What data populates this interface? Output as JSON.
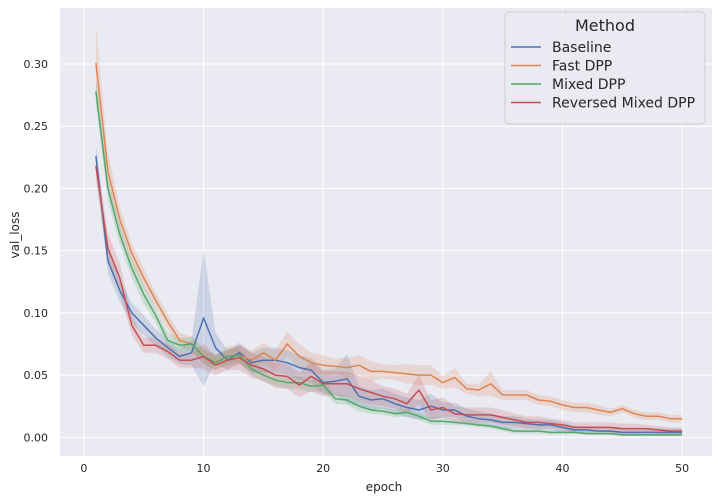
{
  "chart_data": {
    "type": "line",
    "xlabel": "epoch",
    "ylabel": "val_loss",
    "xlim": [
      -2,
      52.5
    ],
    "ylim": [
      -0.015,
      0.345
    ],
    "xticks": [
      0,
      10,
      20,
      30,
      40,
      50
    ],
    "xtick_labels": [
      "0",
      "10",
      "20",
      "30",
      "40",
      "50"
    ],
    "yticks": [
      0.0,
      0.05,
      0.1,
      0.15,
      0.2,
      0.25,
      0.3
    ],
    "ytick_labels": [
      "0.00",
      "0.05",
      "0.10",
      "0.15",
      "0.20",
      "0.25",
      "0.30"
    ],
    "grid": true,
    "legend": {
      "title": "Method",
      "placement": "top-right"
    },
    "x": [
      1,
      2,
      3,
      4,
      5,
      6,
      7,
      8,
      9,
      10,
      11,
      12,
      13,
      14,
      15,
      16,
      17,
      18,
      19,
      20,
      21,
      22,
      23,
      24,
      25,
      26,
      27,
      28,
      29,
      30,
      31,
      32,
      33,
      34,
      35,
      36,
      37,
      38,
      39,
      40,
      41,
      42,
      43,
      44,
      45,
      46,
      47,
      48,
      49,
      50
    ],
    "series": [
      {
        "name": "Baseline",
        "color": "#4c72b0",
        "values": [
          0.226,
          0.142,
          0.118,
          0.1,
          0.09,
          0.08,
          0.072,
          0.065,
          0.068,
          0.096,
          0.072,
          0.062,
          0.068,
          0.06,
          0.062,
          0.062,
          0.06,
          0.056,
          0.054,
          0.044,
          0.045,
          0.047,
          0.033,
          0.03,
          0.031,
          0.027,
          0.024,
          0.022,
          0.025,
          0.022,
          0.022,
          0.017,
          0.015,
          0.014,
          0.012,
          0.012,
          0.011,
          0.01,
          0.01,
          0.008,
          0.006,
          0.006,
          0.005,
          0.005,
          0.004,
          0.004,
          0.004,
          0.004,
          0.004,
          0.004
        ],
        "ci_width": [
          0.01,
          0.01,
          0.009,
          0.008,
          0.008,
          0.007,
          0.007,
          0.006,
          0.01,
          0.055,
          0.012,
          0.008,
          0.008,
          0.008,
          0.01,
          0.01,
          0.01,
          0.01,
          0.01,
          0.01,
          0.01,
          0.02,
          0.008,
          0.008,
          0.008,
          0.008,
          0.008,
          0.008,
          0.01,
          0.006,
          0.006,
          0.006,
          0.006,
          0.005,
          0.005,
          0.005,
          0.004,
          0.004,
          0.004,
          0.004,
          0.003,
          0.003,
          0.003,
          0.003,
          0.003,
          0.003,
          0.003,
          0.003,
          0.003,
          0.003
        ]
      },
      {
        "name": "Fast DPP",
        "color": "#dd8452",
        "values": [
          0.301,
          0.214,
          0.175,
          0.148,
          0.128,
          0.11,
          0.093,
          0.078,
          0.075,
          0.065,
          0.06,
          0.065,
          0.066,
          0.062,
          0.068,
          0.062,
          0.075,
          0.065,
          0.06,
          0.058,
          0.057,
          0.056,
          0.058,
          0.053,
          0.053,
          0.052,
          0.051,
          0.05,
          0.05,
          0.044,
          0.048,
          0.039,
          0.038,
          0.043,
          0.034,
          0.034,
          0.034,
          0.03,
          0.029,
          0.026,
          0.024,
          0.024,
          0.022,
          0.02,
          0.023,
          0.019,
          0.017,
          0.017,
          0.015,
          0.015
        ],
        "ci_width": [
          0.03,
          0.015,
          0.01,
          0.008,
          0.008,
          0.006,
          0.006,
          0.006,
          0.006,
          0.006,
          0.006,
          0.008,
          0.008,
          0.008,
          0.008,
          0.008,
          0.01,
          0.01,
          0.008,
          0.008,
          0.006,
          0.008,
          0.008,
          0.008,
          0.006,
          0.006,
          0.008,
          0.008,
          0.008,
          0.005,
          0.008,
          0.004,
          0.005,
          0.01,
          0.004,
          0.004,
          0.004,
          0.004,
          0.004,
          0.004,
          0.004,
          0.004,
          0.004,
          0.003,
          0.003,
          0.003,
          0.003,
          0.003,
          0.003,
          0.003
        ]
      },
      {
        "name": "Mixed DPP",
        "color": "#55a868",
        "values": [
          0.278,
          0.2,
          0.163,
          0.136,
          0.115,
          0.098,
          0.078,
          0.074,
          0.075,
          0.065,
          0.06,
          0.065,
          0.066,
          0.055,
          0.05,
          0.046,
          0.044,
          0.044,
          0.041,
          0.042,
          0.031,
          0.03,
          0.025,
          0.022,
          0.021,
          0.019,
          0.02,
          0.017,
          0.013,
          0.013,
          0.012,
          0.011,
          0.01,
          0.009,
          0.007,
          0.005,
          0.005,
          0.005,
          0.004,
          0.004,
          0.004,
          0.003,
          0.003,
          0.003,
          0.002,
          0.002,
          0.002,
          0.002,
          0.002,
          0.002
        ],
        "ci_width": [
          0.01,
          0.01,
          0.008,
          0.008,
          0.008,
          0.006,
          0.006,
          0.006,
          0.006,
          0.006,
          0.006,
          0.006,
          0.006,
          0.005,
          0.005,
          0.005,
          0.005,
          0.005,
          0.005,
          0.005,
          0.004,
          0.004,
          0.004,
          0.003,
          0.003,
          0.003,
          0.003,
          0.003,
          0.003,
          0.003,
          0.002,
          0.002,
          0.002,
          0.002,
          0.002,
          0.002,
          0.002,
          0.002,
          0.002,
          0.002,
          0.001,
          0.001,
          0.001,
          0.001,
          0.001,
          0.001,
          0.001,
          0.001,
          0.001,
          0.001
        ]
      },
      {
        "name": "Reversed Mixed DPP",
        "color": "#c44e52",
        "values": [
          0.218,
          0.152,
          0.128,
          0.09,
          0.074,
          0.074,
          0.069,
          0.062,
          0.062,
          0.065,
          0.058,
          0.062,
          0.064,
          0.058,
          0.055,
          0.05,
          0.049,
          0.042,
          0.049,
          0.043,
          0.043,
          0.043,
          0.039,
          0.036,
          0.033,
          0.031,
          0.027,
          0.038,
          0.022,
          0.024,
          0.019,
          0.018,
          0.018,
          0.018,
          0.016,
          0.014,
          0.012,
          0.012,
          0.011,
          0.01,
          0.008,
          0.008,
          0.008,
          0.008,
          0.007,
          0.007,
          0.007,
          0.006,
          0.005,
          0.005
        ],
        "ci_width": [
          0.012,
          0.012,
          0.012,
          0.008,
          0.006,
          0.006,
          0.006,
          0.006,
          0.006,
          0.01,
          0.008,
          0.008,
          0.01,
          0.01,
          0.01,
          0.01,
          0.01,
          0.01,
          0.012,
          0.01,
          0.01,
          0.01,
          0.01,
          0.01,
          0.008,
          0.008,
          0.008,
          0.012,
          0.008,
          0.008,
          0.006,
          0.006,
          0.006,
          0.006,
          0.006,
          0.005,
          0.005,
          0.005,
          0.004,
          0.004,
          0.004,
          0.004,
          0.004,
          0.004,
          0.004,
          0.004,
          0.003,
          0.003,
          0.003,
          0.003
        ]
      }
    ]
  }
}
